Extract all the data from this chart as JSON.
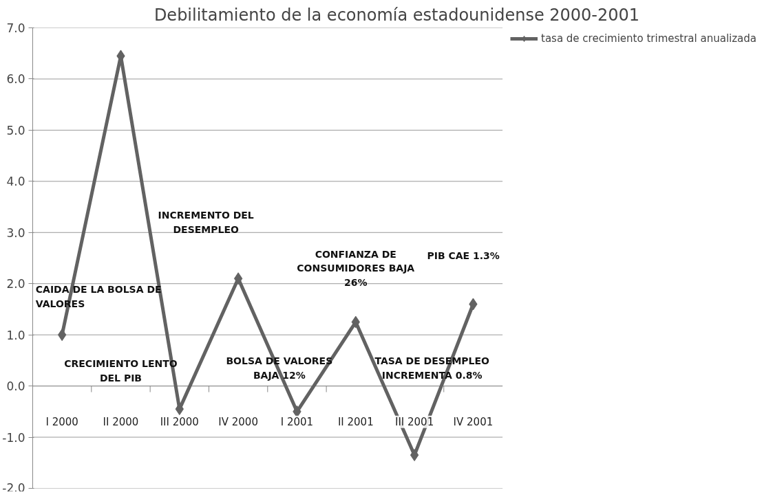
{
  "chart_data": {
    "type": "line",
    "title": "Debilitamiento de la economía estadounidense 2000-2001",
    "categories": [
      "I 2000",
      "II 2000",
      "III 2000",
      "IV 2000",
      "I 2001",
      "II 2001",
      "III 2001",
      "IV 2001"
    ],
    "series": [
      {
        "name": "tasa de crecimiento trimestral anualizada",
        "color": "#626262",
        "values": [
          1.0,
          6.45,
          -0.45,
          2.1,
          -0.5,
          1.25,
          -1.35,
          1.6
        ]
      }
    ],
    "ylim": [
      -2.0,
      7.0
    ],
    "yticks": [
      {
        "value": -2,
        "label": "-2.0"
      },
      {
        "value": -1,
        "label": "-1.0"
      },
      {
        "value": 0,
        "label": "0.0"
      },
      {
        "value": 1,
        "label": "1.0"
      },
      {
        "value": 2,
        "label": "2.0"
      },
      {
        "value": 3,
        "label": "3.0"
      },
      {
        "value": 4,
        "label": "4.0"
      },
      {
        "value": 5,
        "label": "5.0"
      },
      {
        "value": 6,
        "label": "6.0"
      },
      {
        "value": 7,
        "label": "7.0"
      }
    ],
    "grid": "y",
    "legend": "right",
    "marker": "diamond",
    "line_style": "solid",
    "annotations": [
      "CAIDA DE LA BOLSA DE\nVALORES",
      "CRECIMIENTO LENTO\nDEL PIB",
      "INCREMENTO DEL\nDESEMPLEO",
      "BOLSA DE VALORES\nBAJA 12%",
      "CONFIANZA DE\nCONSUMIDORES BAJA\n26%",
      "TASA DE DESEMPLEO\nINCREMENTA 0.8%",
      "PIB CAE 1.3%"
    ]
  }
}
